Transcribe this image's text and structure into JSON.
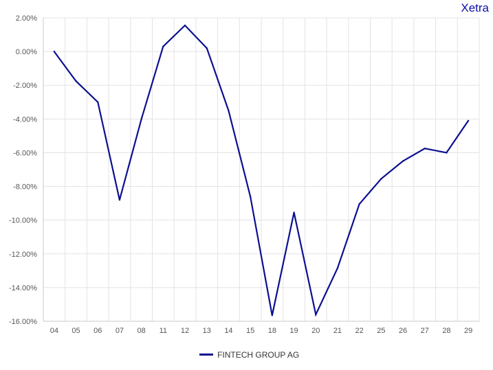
{
  "brand": {
    "label": "Xetra",
    "color": "#0b0fa6"
  },
  "chart_data": {
    "type": "line",
    "title": "",
    "xlabel": "",
    "ylabel": "",
    "categories": [
      "04",
      "05",
      "06",
      "07",
      "08",
      "11",
      "12",
      "13",
      "14",
      "15",
      "18",
      "19",
      "20",
      "21",
      "22",
      "25",
      "26",
      "27",
      "28",
      "29"
    ],
    "series": [
      {
        "name": "FINTECH GROUP AG",
        "color": "#0b0f8f",
        "values": [
          0.0,
          -1.75,
          -3.0,
          -8.8,
          -4.0,
          0.3,
          1.55,
          0.2,
          -3.5,
          -8.6,
          -15.65,
          -9.55,
          -15.6,
          -12.85,
          -9.05,
          -7.55,
          -6.5,
          -5.75,
          -6.0,
          -4.1
        ]
      }
    ],
    "yticks": [
      "2.00%",
      "0.00%",
      "-2.00%",
      "-4.00%",
      "-6.00%",
      "-8.00%",
      "-10.00%",
      "-12.00%",
      "-14.00%",
      "-16.00%"
    ],
    "ytick_values": [
      2,
      0,
      -2,
      -4,
      -6,
      -8,
      -10,
      -12,
      -14,
      -16
    ],
    "ylim": [
      -16,
      2
    ],
    "grid": true,
    "legend_position": "bottom-center"
  },
  "legend": {
    "label": "FINTECH GROUP AG"
  }
}
